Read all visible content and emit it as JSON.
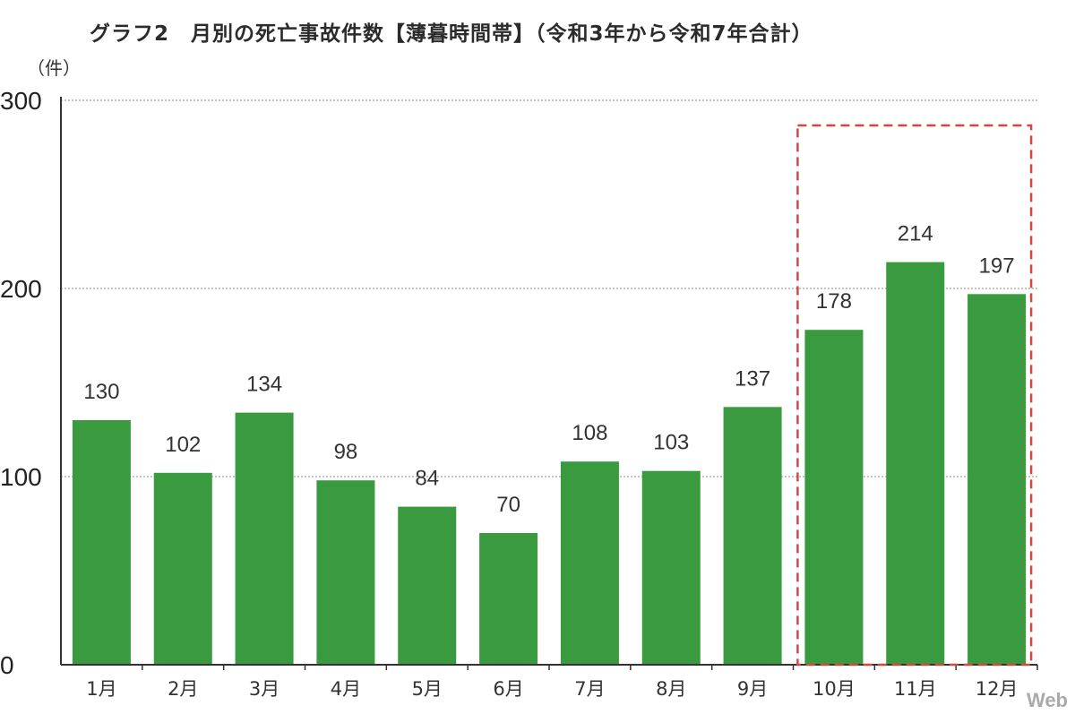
{
  "chart_data": {
    "type": "bar",
    "title": "グラフ2　月別の死亡事故件数【薄暮時間帯】（令和3年から令和7年合計）",
    "unit": "（件）",
    "categories": [
      "1月",
      "2月",
      "3月",
      "4月",
      "5月",
      "6月",
      "7月",
      "8月",
      "9月",
      "10月",
      "11月",
      "12月"
    ],
    "values": [
      130,
      102,
      134,
      98,
      84,
      70,
      108,
      103,
      137,
      178,
      214,
      197
    ],
    "ylim": [
      0,
      300
    ],
    "yticks": [
      0,
      100,
      200,
      300
    ],
    "grid": true,
    "highlight_categories": [
      "10月",
      "11月",
      "12月"
    ],
    "colors": {
      "bar": "#3a9a3f",
      "highlight_box": "#d9463b",
      "grid": "#888888"
    }
  },
  "watermark": "Web"
}
